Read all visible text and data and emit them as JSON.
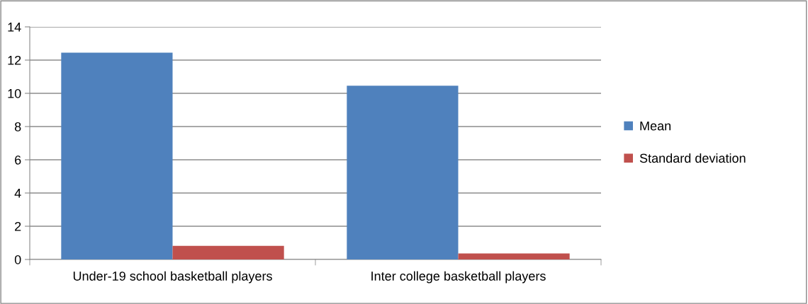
{
  "chart_data": {
    "type": "bar",
    "categories": [
      "Under-19 school basketball players",
      "Inter college basketball players"
    ],
    "series": [
      {
        "name": "Mean",
        "color": "#4f81bd",
        "values": [
          12.45,
          10.46
        ]
      },
      {
        "name": "Standard deviation",
        "color": "#c0504d",
        "values": [
          0.82,
          0.36
        ]
      }
    ],
    "ylim": [
      0,
      14
    ],
    "yticks": [
      0,
      2,
      4,
      6,
      8,
      10,
      12,
      14
    ],
    "grid": "y",
    "legend": "right"
  }
}
